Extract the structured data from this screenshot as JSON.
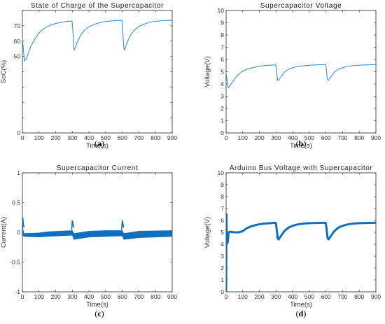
{
  "chart_data": [
    {
      "type": "line",
      "title": "State of Charge of the Supercapacitor",
      "xlabel": "Time(s)",
      "ylabel": "SoC(%)",
      "caption": "a",
      "xlim": [
        0,
        900
      ],
      "ylim": [
        0,
        80
      ],
      "xticks": [
        0,
        100,
        200,
        300,
        400,
        500,
        600,
        700,
        800,
        900
      ],
      "yticks": [
        0,
        10,
        20,
        30,
        40,
        50,
        60,
        70,
        80
      ],
      "ytick_labels": [
        "0",
        "",
        "",
        "",
        "",
        "50",
        "60",
        "70",
        ""
      ],
      "color": "#1f8ad4",
      "line_width": 1,
      "series": [
        {
          "x": [
            0,
            5,
            12,
            25,
            50,
            75,
            100,
            125,
            150,
            175,
            200,
            225,
            250,
            275,
            298,
            302,
            305,
            308,
            312,
            325,
            350,
            375,
            400,
            425,
            450,
            475,
            500,
            525,
            550,
            575,
            598,
            602,
            605,
            608,
            612,
            625,
            650,
            675,
            700,
            725,
            750,
            775,
            800,
            825,
            850,
            875,
            900
          ],
          "y": [
            61,
            56,
            47,
            49,
            56.5,
            61.5,
            65.5,
            67.9,
            69.5,
            70.7,
            71.5,
            72.1,
            72.6,
            72.9,
            73.1,
            69,
            63,
            57,
            54,
            58,
            64,
            67.3,
            69.3,
            70.6,
            71.6,
            72.3,
            72.8,
            73.1,
            73.3,
            73.5,
            73.6,
            69,
            63,
            57,
            54,
            58,
            64,
            67.4,
            69.5,
            70.9,
            71.8,
            72.5,
            72.9,
            73.2,
            73.4,
            73.5,
            73.6
          ]
        }
      ]
    },
    {
      "type": "line",
      "title": "Supercapacitor Voltage",
      "xlabel": "Time(s)",
      "ylabel": "Voltage(V)",
      "caption": "b",
      "xlim": [
        0,
        900
      ],
      "ylim": [
        0,
        10
      ],
      "xticks": [
        0,
        100,
        200,
        300,
        400,
        500,
        600,
        700,
        800,
        900
      ],
      "yticks": [
        0,
        1,
        2,
        3,
        4,
        5,
        6,
        7,
        8,
        9,
        10
      ],
      "color": "#1f8ad4",
      "line_width": 1,
      "series": [
        {
          "x": [
            0,
            5,
            10,
            15,
            25,
            50,
            75,
            100,
            125,
            150,
            175,
            200,
            225,
            250,
            275,
            298,
            302,
            306,
            310,
            315,
            325,
            350,
            375,
            400,
            425,
            450,
            475,
            500,
            525,
            550,
            575,
            598,
            602,
            606,
            610,
            615,
            625,
            650,
            675,
            700,
            725,
            750,
            775,
            800,
            825,
            850,
            875,
            900
          ],
          "y": [
            4.9,
            4.4,
            3.8,
            3.7,
            3.9,
            4.4,
            4.8,
            5.05,
            5.2,
            5.3,
            5.38,
            5.44,
            5.49,
            5.52,
            5.54,
            5.55,
            5.2,
            4.7,
            4.3,
            4.3,
            4.5,
            4.95,
            5.2,
            5.33,
            5.41,
            5.46,
            5.5,
            5.53,
            5.55,
            5.56,
            5.57,
            5.57,
            5.2,
            4.7,
            4.3,
            4.3,
            4.5,
            4.95,
            5.2,
            5.33,
            5.42,
            5.47,
            5.51,
            5.53,
            5.55,
            5.56,
            5.57,
            5.57
          ]
        }
      ]
    },
    {
      "type": "line",
      "title": "Supercapacitor Current",
      "xlabel": "Time(s)",
      "ylabel": "Current(A)",
      "caption": "c",
      "xlim": [
        0,
        900
      ],
      "ylim": [
        -1,
        1
      ],
      "xticks": [
        0,
        100,
        200,
        300,
        400,
        500,
        600,
        700,
        800,
        900
      ],
      "yticks": [
        -1,
        -0.5,
        0,
        0.5,
        1
      ],
      "color": "#0e6fbd",
      "line_width": 1,
      "band": {
        "x": [
          0,
          10,
          100,
          150,
          300,
          310,
          400,
          500,
          600,
          610,
          700,
          900
        ],
        "y_upper": [
          0.1,
          -0.02,
          -0.01,
          0.01,
          0.03,
          -0.02,
          0.02,
          0.03,
          0.03,
          -0.02,
          0.02,
          0.03
        ],
        "y_lower": [
          -0.05,
          -0.07,
          -0.08,
          -0.07,
          -0.05,
          -0.12,
          -0.08,
          -0.07,
          -0.06,
          -0.12,
          -0.09,
          -0.07
        ]
      },
      "spikes": [
        {
          "x": [
            0,
            2,
            4,
            6,
            10
          ],
          "y": [
            -0.05,
            0.25,
            0.2,
            0.14,
            0.08
          ]
        },
        {
          "x": [
            296,
            300,
            304,
            308
          ],
          "y": [
            0.04,
            0.2,
            0.15,
            0.08
          ]
        },
        {
          "x": [
            596,
            600,
            604,
            608
          ],
          "y": [
            0.04,
            0.2,
            0.15,
            0.08
          ]
        }
      ]
    },
    {
      "type": "line",
      "title": "Arduino Bus Voltage with Supercapacitor",
      "xlabel": "Time(s)",
      "ylabel": "Voltage(V)",
      "caption": "d",
      "xlim": [
        0,
        900
      ],
      "ylim": [
        0,
        10
      ],
      "xticks": [
        0,
        100,
        200,
        300,
        400,
        500,
        600,
        700,
        800,
        900
      ],
      "yticks": [
        0,
        1,
        2,
        3,
        4,
        5,
        6,
        7,
        8,
        9,
        10
      ],
      "color": "#0e6fbd",
      "line_width": 3,
      "series": [
        {
          "x": [
            0,
            2,
            4,
            6,
            8,
            10,
            15,
            25,
            50,
            75,
            100,
            125,
            150,
            175,
            200,
            225,
            250,
            275,
            298,
            302,
            306,
            310,
            315,
            325,
            350,
            375,
            400,
            425,
            450,
            475,
            500,
            525,
            550,
            575,
            598,
            602,
            606,
            610,
            615,
            625,
            650,
            675,
            700,
            725,
            750,
            775,
            800,
            825,
            850,
            875,
            900
          ],
          "y": [
            0,
            6.5,
            4.8,
            4.4,
            4.1,
            4.2,
            5.0,
            5.05,
            5.0,
            5.0,
            5.1,
            5.35,
            5.5,
            5.6,
            5.68,
            5.73,
            5.76,
            5.78,
            5.8,
            5.5,
            5.0,
            4.5,
            4.4,
            4.6,
            5.1,
            5.4,
            5.55,
            5.65,
            5.71,
            5.75,
            5.77,
            5.78,
            5.79,
            5.8,
            5.8,
            5.5,
            5.0,
            4.5,
            4.4,
            4.6,
            5.1,
            5.4,
            5.55,
            5.65,
            5.71,
            5.75,
            5.77,
            5.78,
            5.79,
            5.8,
            5.8
          ]
        }
      ]
    }
  ]
}
